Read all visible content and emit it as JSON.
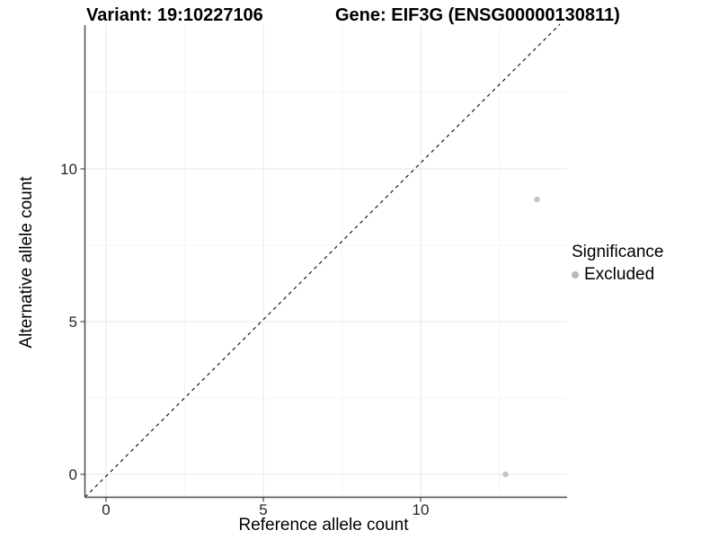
{
  "chart_data": {
    "type": "scatter",
    "titles": {
      "left": "Variant: 19:10227106",
      "right": "Gene: EIF3G (ENSG00000130811)"
    },
    "xlabel": "Reference allele count",
    "ylabel": "Alternative allele count",
    "x_ticks": [
      0,
      5,
      10
    ],
    "y_ticks": [
      0,
      5,
      10
    ],
    "xlim": [
      -0.7,
      14.7
    ],
    "ylim": [
      -0.75,
      14.7
    ],
    "grid": {
      "major": true,
      "minor": true,
      "major_color": "#e8e8e8",
      "minor_color": "#f4f4f4"
    },
    "identity_line": {
      "label": "y = x",
      "style": "dashed",
      "color": "#1a1a1a"
    },
    "points": [
      {
        "x": 13.7,
        "y": 9,
        "significance": "Excluded"
      },
      {
        "x": 12.7,
        "y": 0,
        "significance": "Excluded"
      }
    ],
    "point_color": "#c4c4c4",
    "legend": {
      "title": "Significance",
      "position": "right",
      "items": [
        {
          "label": "Excluded",
          "color": "#b8b8b8"
        }
      ]
    },
    "axis_color": "#4a4a4a",
    "tick_label_color": "#262626"
  }
}
